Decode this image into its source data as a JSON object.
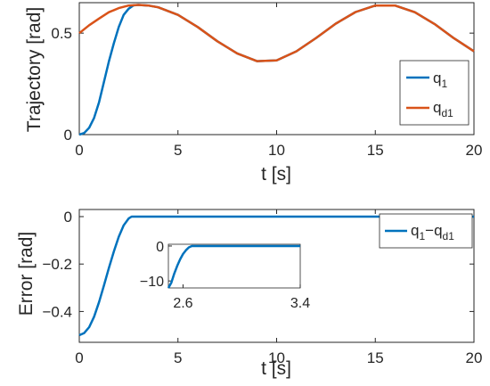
{
  "chart_data": [
    {
      "type": "line",
      "xlabel": "t [s]",
      "ylabel": "Trajectory [rad]",
      "xlim": [
        0,
        20
      ],
      "ylim": [
        0,
        0.65
      ],
      "xticks": [
        "0",
        "5",
        "10",
        "15",
        "20"
      ],
      "yticks": [
        "0",
        "0.5"
      ],
      "legend": "right",
      "grid": false,
      "series": [
        {
          "name": "q",
          "sub": "1",
          "color": "#0072BD",
          "x": [
            0,
            0.25,
            0.5,
            0.75,
            1.0,
            1.25,
            1.5,
            1.75,
            2.0,
            2.25,
            2.5,
            2.75,
            3.0,
            3.5,
            4,
            5,
            6,
            7,
            8,
            9,
            10,
            11,
            12,
            13,
            14,
            15,
            16,
            17,
            18,
            19,
            20
          ],
          "y": [
            0.0,
            0.008,
            0.034,
            0.082,
            0.16,
            0.26,
            0.36,
            0.45,
            0.53,
            0.59,
            0.62,
            0.637,
            0.639,
            0.636,
            0.627,
            0.59,
            0.53,
            0.46,
            0.4,
            0.362,
            0.366,
            0.41,
            0.476,
            0.547,
            0.604,
            0.636,
            0.636,
            0.603,
            0.545,
            0.474,
            0.41
          ]
        },
        {
          "name": "q",
          "sub": "d1",
          "color": "#D95319",
          "x": [
            0,
            0.5,
            1,
            1.5,
            2,
            2.5,
            3,
            3.5,
            4,
            5,
            6,
            7,
            8,
            9,
            10,
            11,
            12,
            13,
            14,
            15,
            16,
            17,
            18,
            19,
            20
          ],
          "y": [
            0.5,
            0.539,
            0.572,
            0.603,
            0.623,
            0.636,
            0.639,
            0.636,
            0.627,
            0.59,
            0.53,
            0.46,
            0.4,
            0.362,
            0.366,
            0.41,
            0.476,
            0.547,
            0.604,
            0.636,
            0.636,
            0.603,
            0.545,
            0.474,
            0.41
          ]
        }
      ]
    },
    {
      "type": "line",
      "xlabel": "t [s]",
      "ylabel": "Error [rad]",
      "xlim": [
        0,
        20
      ],
      "ylim": [
        -0.53,
        0.03
      ],
      "xticks": [
        "0",
        "5",
        "10",
        "15",
        "20"
      ],
      "yticks": [
        "0",
        "−0.2",
        "−0.4"
      ],
      "legend": "top-right",
      "grid": false,
      "series": [
        {
          "name": "q",
          "sub": "1",
          "name2": "−q",
          "sub2": "d1",
          "color": "#0072BD",
          "x": [
            0,
            0.25,
            0.5,
            0.75,
            1.0,
            1.25,
            1.5,
            1.75,
            2.0,
            2.25,
            2.5,
            2.65,
            3,
            5,
            10,
            15,
            20
          ],
          "y": [
            -0.5,
            -0.491,
            -0.466,
            -0.422,
            -0.36,
            -0.29,
            -0.217,
            -0.147,
            -0.085,
            -0.037,
            -0.008,
            0,
            0,
            0,
            0,
            0,
            0
          ]
        }
      ],
      "inset": {
        "xlim": [
          2.5,
          3.4
        ],
        "ylim": [
          -12,
          0.5
        ],
        "xticks": [
          "2.6",
          "3.4"
        ],
        "yticks": [
          "0",
          "−10"
        ],
        "x": [
          2.5,
          2.52,
          2.54,
          2.56,
          2.58,
          2.6,
          2.62,
          2.64,
          2.66,
          2.7,
          3.4
        ],
        "y": [
          -12,
          -10.5,
          -7.9,
          -5.7,
          -3.8,
          -2.3,
          -1.2,
          -0.4,
          0,
          0,
          0
        ]
      }
    }
  ]
}
